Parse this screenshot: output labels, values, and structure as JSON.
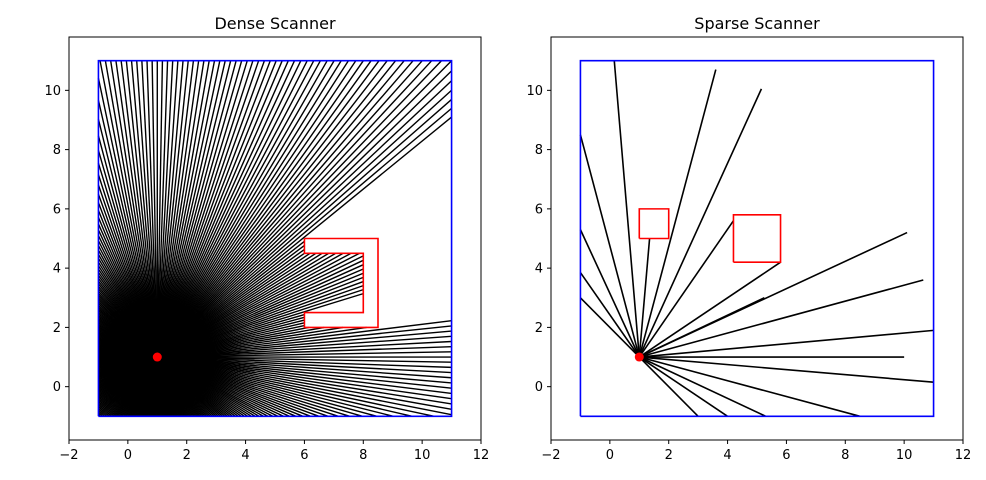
{
  "chart_data": [
    {
      "type": "line",
      "title": "Dense Scanner",
      "xlim": [
        -2,
        12
      ],
      "ylim": [
        -1.8,
        11.8
      ],
      "xticks": [
        -2,
        0,
        2,
        4,
        6,
        8,
        10,
        12
      ],
      "yticks": [
        0,
        2,
        4,
        6,
        8,
        10
      ],
      "grid": false,
      "colors": {
        "boundary": "#0000ff",
        "obstacle": "#ff0000",
        "ray": "#000000",
        "sensor": "#ff0000"
      },
      "sensor": {
        "x": 1,
        "y": 1
      },
      "boundary": [
        [
          -1,
          -1
        ],
        [
          11,
          -1
        ],
        [
          11,
          11
        ],
        [
          -1,
          11
        ],
        [
          -1,
          -1
        ]
      ],
      "obstacles": [
        [
          [
            6,
            5
          ],
          [
            8.5,
            5
          ],
          [
            8.5,
            2
          ],
          [
            6,
            2
          ],
          [
            6,
            2.5
          ],
          [
            8,
            2.5
          ],
          [
            8,
            4.5
          ],
          [
            6,
            4.5
          ],
          [
            6,
            5
          ]
        ]
      ],
      "ray_count": 360,
      "rays": "cast from sensor to first hit on boundary or obstacle"
    },
    {
      "type": "line",
      "title": "Sparse Scanner",
      "xlim": [
        -2,
        12
      ],
      "ylim": [
        -1.8,
        11.8
      ],
      "xticks": [
        -2,
        0,
        2,
        4,
        6,
        8,
        10,
        12
      ],
      "yticks": [
        0,
        2,
        4,
        6,
        8,
        10
      ],
      "grid": false,
      "colors": {
        "boundary": "#0000ff",
        "obstacle": "#ff0000",
        "ray": "#000000",
        "sensor": "#ff0000"
      },
      "sensor": {
        "x": 1,
        "y": 1
      },
      "boundary": [
        [
          -1,
          -1
        ],
        [
          11,
          -1
        ],
        [
          11,
          11
        ],
        [
          -1,
          11
        ],
        [
          -1,
          -1
        ]
      ],
      "obstacles": [
        [
          [
            1,
            5
          ],
          [
            2,
            5
          ],
          [
            2,
            6
          ],
          [
            1,
            6
          ],
          [
            1,
            5
          ]
        ],
        [
          [
            4.2,
            4.2
          ],
          [
            5.8,
            4.2
          ],
          [
            5.8,
            5.8
          ],
          [
            4.2,
            5.8
          ],
          [
            4.2,
            4.2
          ]
        ]
      ],
      "rays": [
        [
          5.25,
          3.0
        ],
        [
          10.0,
          1.0
        ],
        [
          10.1,
          5.2
        ],
        [
          10.65,
          3.6
        ],
        [
          11.0,
          1.9
        ],
        [
          11.0,
          0.15
        ],
        [
          8.5,
          -1.0
        ],
        [
          5.3,
          -1.0
        ],
        [
          4.0,
          -1.0
        ],
        [
          3.0,
          -1.0
        ],
        [
          -1.0,
          3.0
        ],
        [
          -1.0,
          3.85
        ],
        [
          -1.0,
          5.3
        ],
        [
          -1.0,
          8.5
        ],
        [
          0.15,
          11.0
        ],
        [
          1.35,
          5.0
        ],
        [
          3.6,
          10.7
        ],
        [
          4.2,
          5.6
        ],
        [
          5.15,
          10.05
        ],
        [
          5.8,
          4.2
        ]
      ]
    }
  ]
}
